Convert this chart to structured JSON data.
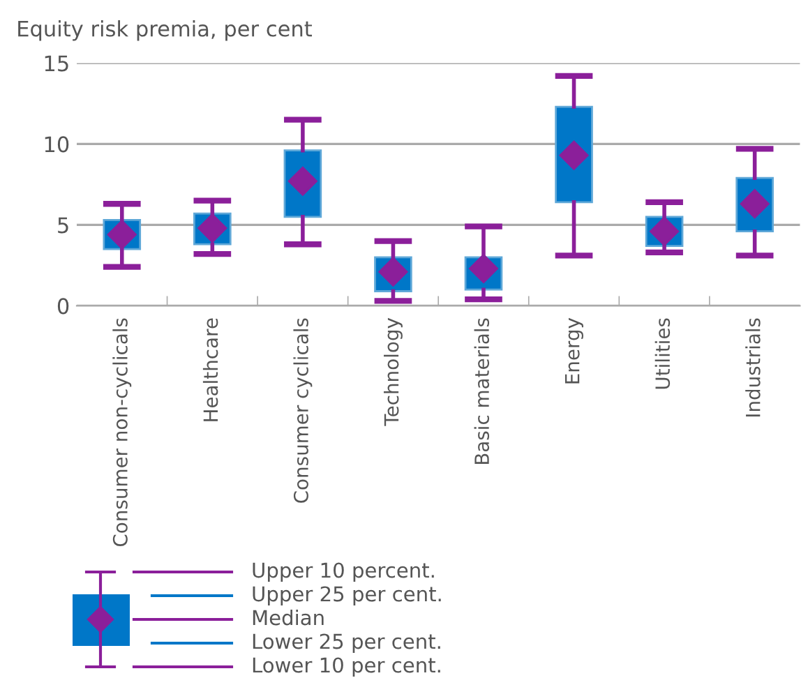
{
  "chart_data": {
    "type": "box",
    "title": "Equity risk premia, per cent",
    "categories": [
      "Consumer non-cyclicals",
      "Healthcare",
      "Consumer cyclicals",
      "Technology",
      "Basic materials",
      "Energy",
      "Utilities",
      "Industrials"
    ],
    "boxes": [
      {
        "low": 2.4,
        "q1": 3.5,
        "median": 4.4,
        "q3": 5.3,
        "high": 6.3
      },
      {
        "low": 3.2,
        "q1": 3.8,
        "median": 4.8,
        "q3": 5.7,
        "high": 6.5
      },
      {
        "low": 3.8,
        "q1": 5.5,
        "median": 7.7,
        "q3": 9.6,
        "high": 11.5
      },
      {
        "low": 0.3,
        "q1": 0.9,
        "median": 2.1,
        "q3": 3.0,
        "high": 4.0
      },
      {
        "low": 0.4,
        "q1": 1.0,
        "median": 2.3,
        "q3": 3.0,
        "high": 4.9
      },
      {
        "low": 3.1,
        "q1": 6.4,
        "median": 9.3,
        "q3": 12.3,
        "high": 14.2
      },
      {
        "low": 3.3,
        "q1": 3.7,
        "median": 4.6,
        "q3": 5.5,
        "high": 6.4
      },
      {
        "low": 3.1,
        "q1": 4.6,
        "median": 6.3,
        "q3": 7.9,
        "high": 9.7
      }
    ],
    "color": "#8b1f9a",
    "colors": [
      "#0077c8",
      "#0077c8",
      "#0077c8",
      "#0077c8",
      "#0077c8",
      "#0077c8",
      "#0077c8",
      "#0077c8"
    ],
    "marker": "diamond",
    "ylim": [
      0,
      15
    ],
    "yticks": [
      0,
      5,
      10,
      15
    ],
    "grid": "y",
    "legend": false,
    "annotations": [
      "Upper 10 percent.",
      "Upper 25 per cent.",
      "Median",
      "Lower 25 per cent.",
      "Lower 10 per cent."
    ]
  }
}
